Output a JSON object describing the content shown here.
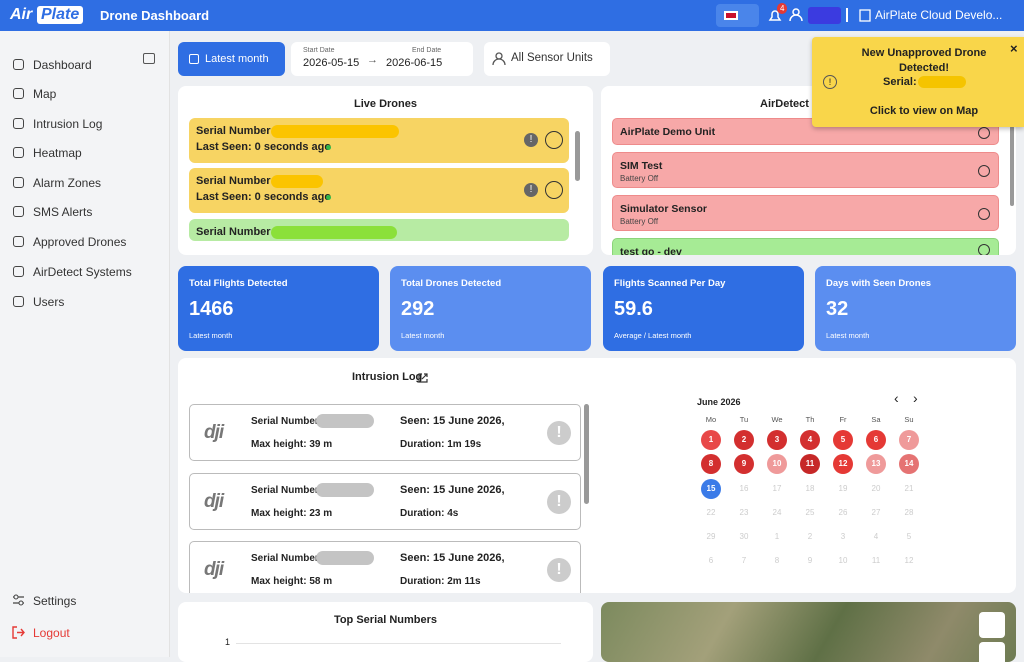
{
  "header": {
    "logo_air": "Air",
    "logo_plate": "Plate",
    "title": "Drone Dashboard",
    "notifications": "4",
    "org": "AirPlate Cloud Develo..."
  },
  "sidebar": {
    "items": [
      "Dashboard",
      "Map",
      "Intrusion Log",
      "Heatmap",
      "Alarm Zones",
      "SMS Alerts",
      "Approved Drones",
      "AirDetect Systems",
      "Users"
    ],
    "settings": "Settings",
    "logout": "Logout"
  },
  "filters": {
    "period": "Latest month",
    "start_label": "Start Date",
    "start": "2026-05-15",
    "end_label": "End Date",
    "end": "2026-06-15",
    "sensors": "All Sensor Units"
  },
  "live_drones": {
    "title": "Live Drones",
    "items": [
      {
        "serial_label": "Serial Number:",
        "seen": "Last Seen: 0 seconds ago"
      },
      {
        "serial_label": "Serial Number:",
        "seen": "Last Seen: 0 seconds ago"
      },
      {
        "serial_label": "Serial Number:"
      }
    ]
  },
  "airdetect": {
    "title": "AirDetect Systems",
    "items": [
      {
        "name": "AirPlate Demo Unit"
      },
      {
        "name": "SIM Test",
        "status": "Battery Off"
      },
      {
        "name": "Simulator Sensor",
        "status": "Battery Off"
      },
      {
        "name": "test go - dev"
      }
    ]
  },
  "stats": [
    {
      "label": "Total Flights Detected",
      "value": "1466",
      "note": "Latest month"
    },
    {
      "label": "Total Drones Detected",
      "value": "292",
      "note": "Latest month"
    },
    {
      "label": "Flights Scanned Per Day",
      "value": "59.6",
      "note": "Average / Latest month"
    },
    {
      "label": "Days with Seen Drones",
      "value": "32",
      "note": "Latest month"
    }
  ],
  "intrusion_log": {
    "title": "Intrusion Log",
    "entries": [
      {
        "serial_label": "Serial Number:",
        "seen": "Seen: 15 June 2026,",
        "max_height": "Max height: 39 m",
        "duration": "Duration: 1m 19s"
      },
      {
        "serial_label": "Serial Number:",
        "seen": "Seen: 15 June 2026,",
        "max_height": "Max height: 23 m",
        "duration": "Duration: 4s"
      },
      {
        "serial_label": "Serial Number:",
        "seen": "Seen: 15 June 2026,",
        "max_height": "Max height: 58 m",
        "duration": "Duration: 2m 11s"
      }
    ]
  },
  "calendar": {
    "month": "June 2026",
    "weekdays": [
      "Mo",
      "Tu",
      "We",
      "Th",
      "Fr",
      "Sa",
      "Su"
    ],
    "days": [
      1,
      2,
      3,
      4,
      5,
      6,
      7,
      8,
      9,
      10,
      11,
      12,
      13,
      14,
      15,
      16,
      17,
      18,
      19,
      20,
      21,
      22,
      23,
      24,
      25,
      26,
      27,
      28,
      29,
      30,
      1,
      2,
      3,
      4,
      5,
      6,
      7,
      8,
      9,
      10,
      11,
      12
    ],
    "colors": [
      "#e84848",
      "#d32f2f",
      "#d32f2f",
      "#d32f2f",
      "#e53935",
      "#e53935",
      "#ef9a9a",
      "#d32f2f",
      "#d32f2f",
      "#ef9a9a",
      "#c62828",
      "#e53935",
      "#ef9a9a",
      "#e57373",
      "#3b7be8"
    ]
  },
  "top_serials": {
    "title": "Top Serial Numbers",
    "tick": "1"
  },
  "popup": {
    "title": "New Unapproved Drone Detected!",
    "serial_label": "Serial:",
    "link": "Click to view on Map",
    "close": "×"
  }
}
